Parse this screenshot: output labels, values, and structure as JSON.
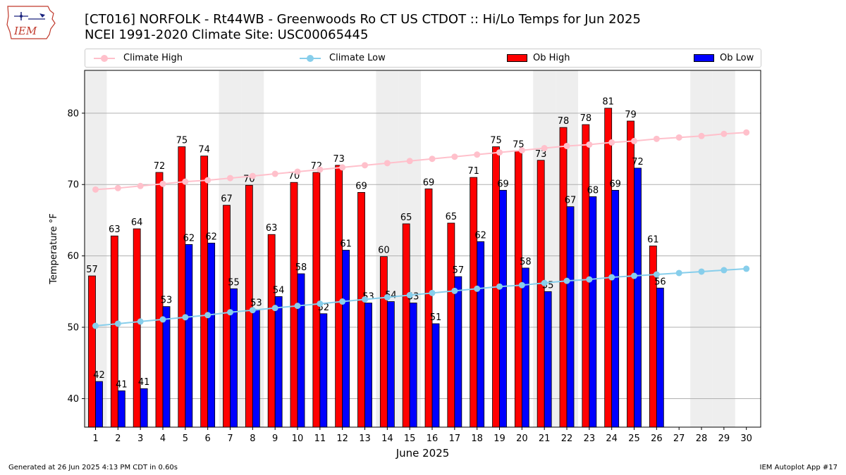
{
  "header": {
    "title_line1": "[CT016] NORFOLK - Rt44WB - Greenwoods Ro CT US  CTDOT :: Hi/Lo Temps for Jun 2025",
    "title_line2": "NCEI 1991-2020 Climate Site: USC00065445",
    "logo_text": "IEM"
  },
  "legend": {
    "climate_high": "Climate High",
    "climate_low": "Climate Low",
    "ob_high": "Ob High",
    "ob_low": "Ob Low"
  },
  "footer": {
    "left": "Generated at 26 Jun 2025 4:13 PM CDT in 0.60s",
    "right": "IEM Autoplot App #17"
  },
  "colors": {
    "ob_high": "#ff0000",
    "ob_low": "#0000ff",
    "climate_high": "#ffc0cb",
    "climate_low": "#87ceeb",
    "weekend_shade": "#eeeeee"
  },
  "chart_data": {
    "type": "bar",
    "xlabel": "June 2025",
    "ylabel": "Temperature °F",
    "ylim": [
      36,
      86
    ],
    "yticks": [
      40,
      50,
      60,
      70,
      80
    ],
    "grid": true,
    "legend_position": "top",
    "categories": [
      "1",
      "2",
      "3",
      "4",
      "5",
      "6",
      "7",
      "8",
      "9",
      "10",
      "11",
      "12",
      "13",
      "14",
      "15",
      "16",
      "17",
      "18",
      "19",
      "20",
      "21",
      "22",
      "23",
      "24",
      "25",
      "26",
      "27",
      "28",
      "29",
      "30"
    ],
    "shaded_days": [
      1,
      7,
      8,
      14,
      15,
      21,
      22,
      28,
      29
    ],
    "series": [
      {
        "name": "Ob High",
        "kind": "bar",
        "values": [
          57.2,
          62.8,
          63.8,
          71.7,
          75.3,
          74.0,
          67.1,
          69.9,
          63.0,
          70.3,
          71.7,
          72.7,
          68.9,
          59.9,
          64.5,
          69.4,
          64.6,
          71.0,
          75.3,
          74.7,
          73.4,
          78.0,
          78.4,
          80.7,
          78.9,
          61.4,
          null,
          null,
          null,
          null
        ],
        "labels": [
          "57",
          "63",
          "64",
          "72",
          "75",
          "74",
          "67",
          "70",
          "63",
          "70",
          "72",
          "73",
          "69",
          "60",
          "65",
          "69",
          "65",
          "71",
          "75",
          "75",
          "73",
          "78",
          "78",
          "81",
          "79",
          "61",
          "",
          "",
          "",
          ""
        ]
      },
      {
        "name": "Ob Low",
        "kind": "bar",
        "values": [
          42.4,
          41.1,
          41.4,
          52.9,
          61.6,
          61.8,
          55.4,
          52.5,
          54.3,
          57.5,
          51.9,
          60.8,
          53.4,
          53.6,
          53.4,
          50.5,
          57.1,
          62.0,
          69.2,
          58.3,
          55.0,
          66.9,
          68.3,
          69.2,
          72.3,
          55.5,
          null,
          null,
          null,
          null
        ],
        "labels": [
          "42",
          "41",
          "41",
          "53",
          "62",
          "62",
          "55",
          "53",
          "54",
          "58",
          "52",
          "61",
          "53",
          "54",
          "53",
          "51",
          "57",
          "62",
          "69",
          "58",
          "55",
          "67",
          "68",
          "69",
          "72",
          "56",
          "",
          "",
          "",
          ""
        ]
      },
      {
        "name": "Climate High",
        "kind": "line",
        "values": [
          69.3,
          69.5,
          69.8,
          70.1,
          70.4,
          70.6,
          70.9,
          71.2,
          71.5,
          71.8,
          72.1,
          72.4,
          72.7,
          73.0,
          73.3,
          73.6,
          73.9,
          74.2,
          74.5,
          74.8,
          75.1,
          75.4,
          75.6,
          75.9,
          76.1,
          76.4,
          76.6,
          76.8,
          77.1,
          77.3
        ]
      },
      {
        "name": "Climate Low",
        "kind": "line",
        "values": [
          50.2,
          50.5,
          50.8,
          51.1,
          51.4,
          51.7,
          52.1,
          52.4,
          52.7,
          53.0,
          53.3,
          53.6,
          53.9,
          54.2,
          54.5,
          54.8,
          55.1,
          55.4,
          55.7,
          55.9,
          56.2,
          56.5,
          56.7,
          57.0,
          57.2,
          57.4,
          57.6,
          57.8,
          58.0,
          58.2
        ]
      }
    ]
  }
}
